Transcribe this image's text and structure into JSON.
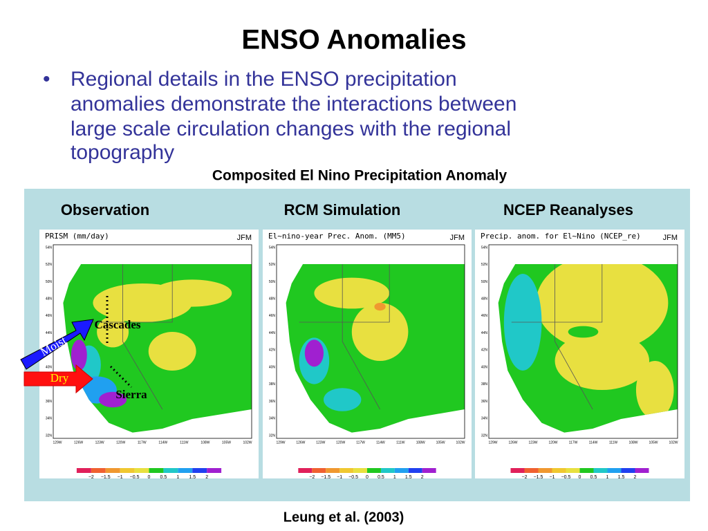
{
  "title": "ENSO Anomalies",
  "bullet": [
    "Regional details in the ENSO precipitation",
    "anomalies demonstrate the interactions between",
    "large scale circulation changes with the regional",
    "topography"
  ],
  "figure_caption": "Composited El Nino Precipitation Anomaly",
  "panels": [
    {
      "header": "Observation",
      "map_title": "PRISM   (mm/day)",
      "season": "JFM"
    },
    {
      "header": "RCM Simulation",
      "map_title": "El~nino-year Prec. Anom.    (MM5)",
      "season": "JFM"
    },
    {
      "header": "NCEP Reanalyses",
      "map_title": "Precip. anom. for El~Nino (NCEP_re)",
      "season": "JFM"
    }
  ],
  "lat_ticks": [
    "54N",
    "52N",
    "50N",
    "48N",
    "46N",
    "44N",
    "42N",
    "40N",
    "38N",
    "36N",
    "34N",
    "32N"
  ],
  "lon_ticks": [
    "129W",
    "126W",
    "123W",
    "120W",
    "117W",
    "114W",
    "111W",
    "108W",
    "105W",
    "102W"
  ],
  "colorbar": {
    "labels": [
      "−2",
      "−1.5",
      "−1",
      "−0.5",
      "0",
      "0.5",
      "1",
      "1.5",
      "2"
    ],
    "colors": [
      "#e0205a",
      "#f06030",
      "#f09830",
      "#f0c830",
      "#e8e040",
      "#20c820",
      "#20c8c8",
      "#20a0f0",
      "#2040f0",
      "#a020d0"
    ]
  },
  "annotations": {
    "cascades": "Cascades",
    "sierra": "Sierra",
    "moist": "Moist",
    "dry": "Dry"
  },
  "citation": "Leung et al. (2003)"
}
